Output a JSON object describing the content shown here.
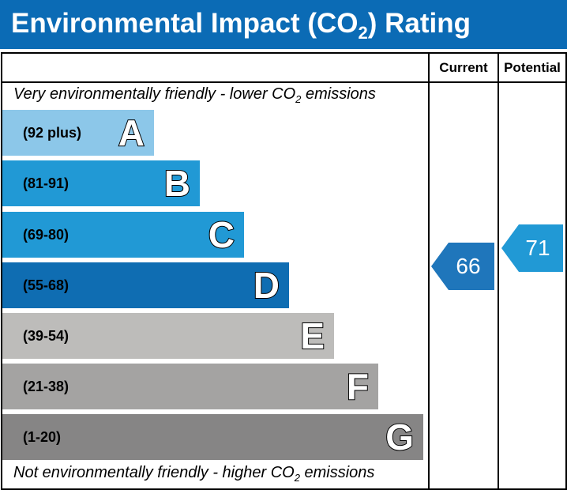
{
  "title": {
    "prefix": "Environmental Impact (CO",
    "sub": "2",
    "suffix": ") Rating"
  },
  "columns": {
    "current": "Current",
    "potential": "Potential"
  },
  "captions": {
    "top_prefix": "Very environmentally friendly - lower CO",
    "top_sub": "2",
    "top_suffix": " emissions",
    "bottom_prefix": "Not environmentally friendly - higher CO",
    "bottom_sub": "2",
    "bottom_suffix": " emissions"
  },
  "chart_data": {
    "type": "bar",
    "categories": [
      "A",
      "B",
      "C",
      "D",
      "E",
      "F",
      "G"
    ],
    "ranges": [
      "(92 plus)",
      "(81-91)",
      "(69-80)",
      "(55-68)",
      "(39-54)",
      "(21-38)",
      "(1-20)"
    ],
    "colors": [
      "#8cc7e9",
      "#2199d5",
      "#2199d5",
      "#0f6db2",
      "#bdbcba",
      "#a4a3a2",
      "#868585"
    ],
    "current": {
      "value": 66,
      "band": "D",
      "color": "#1f76bb"
    },
    "potential": {
      "value": 71,
      "band": "C",
      "color": "#2199d5"
    }
  }
}
